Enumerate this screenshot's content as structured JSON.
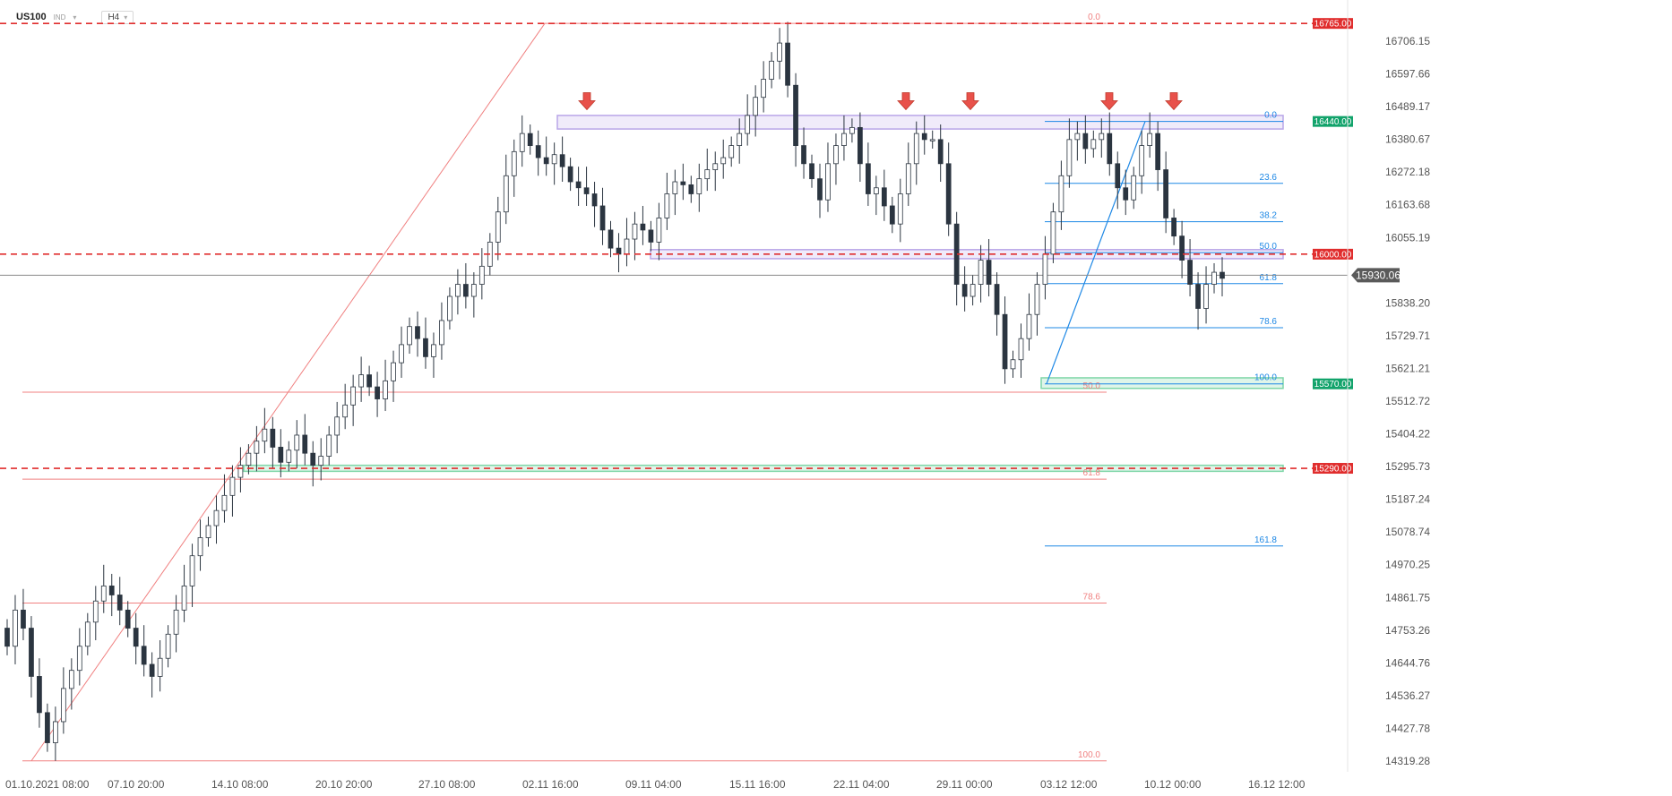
{
  "header": {
    "symbol": "US100",
    "exchange": "IND",
    "timeframe": "H4"
  },
  "colors": {
    "up": "#ffffff",
    "down": "#2b3540",
    "wick": "#2b3540",
    "resistance": "#e02d2d",
    "support_label": "#12a36b",
    "fib_red": "#f08080",
    "fib_blue": "#1e88e5",
    "zone": "#b9a6e8",
    "zone_green": "#7fd6a8",
    "current": "#555555",
    "arrow": "#e8514a"
  },
  "chart_data": {
    "type": "candlestick",
    "symbol": "US100",
    "timeframe": "H4",
    "ylim": [
      14270,
      16800
    ],
    "y_ticks": [
      "16706.15",
      "16597.66",
      "16489.17",
      "16380.67",
      "16272.18",
      "16163.68",
      "16055.19",
      "15838.20",
      "15729.71",
      "15621.21",
      "15512.72",
      "15404.22",
      "15295.73",
      "15187.24",
      "15078.74",
      "14970.25",
      "14861.75",
      "14753.26",
      "14644.76",
      "14536.27",
      "14427.78",
      "14319.28"
    ],
    "x_ticks": [
      "01.10.2021  08:00",
      "07.10  20:00",
      "14.10  08:00",
      "20.10  20:00",
      "27.10  08:00",
      "02.11  16:00",
      "09.11  04:00",
      "15.11  16:00",
      "22.11  04:00",
      "29.11  00:00",
      "03.12  12:00",
      "10.12  00:00",
      "16.12  12:00"
    ],
    "current_price": "15930.06",
    "levels": [
      {
        "price": 16765,
        "label": "16765.00",
        "kind": "resistance"
      },
      {
        "price": 16440,
        "label": "16440.00",
        "kind": "support"
      },
      {
        "price": 16000,
        "label": "16000.00",
        "kind": "resistance"
      },
      {
        "price": 15570,
        "label": "15570.00",
        "kind": "support"
      },
      {
        "price": 15290,
        "label": "15290.00",
        "kind": "resistance"
      }
    ],
    "fib_red": {
      "high": 16765,
      "low": 14320,
      "levels": [
        {
          "ratio": 0.0,
          "label": "0.0"
        },
        {
          "ratio": 0.5,
          "label": "50.0"
        },
        {
          "ratio": 0.618,
          "label": "61.8"
        },
        {
          "ratio": 0.786,
          "label": "78.6"
        },
        {
          "ratio": 1.0,
          "label": "100.0"
        }
      ]
    },
    "fib_blue": {
      "high": 16440,
      "low": 15570,
      "levels": [
        {
          "ratio": 0.0,
          "label": "0.0"
        },
        {
          "ratio": 0.236,
          "label": "23.6"
        },
        {
          "ratio": 0.382,
          "label": "38.2"
        },
        {
          "ratio": 0.5,
          "label": "50.0"
        },
        {
          "ratio": 0.618,
          "label": "61.8"
        },
        {
          "ratio": 0.786,
          "label": "78.6"
        },
        {
          "ratio": 1.0,
          "label": "100.0"
        },
        {
          "ratio": 1.618,
          "label": "161.8"
        }
      ]
    },
    "zones": [
      {
        "from": 16415,
        "to": 16460
      },
      {
        "from": 15985,
        "to": 16015
      },
      {
        "from": 15555,
        "to": 15590
      },
      {
        "from": 15280,
        "to": 15300
      }
    ],
    "arrows_at_price": 16470,
    "series": [
      {
        "name": "close",
        "values": [
          14700,
          14820,
          14760,
          14600,
          14480,
          14380,
          14450,
          14560,
          14620,
          14700,
          14780,
          14850,
          14900,
          14870,
          14820,
          14760,
          14700,
          14640,
          14600,
          14660,
          14740,
          14820,
          14900,
          15000,
          15060,
          15100,
          15150,
          15200,
          15260,
          15300,
          15340,
          15380,
          15420,
          15360,
          15310,
          15350,
          15400,
          15340,
          15300,
          15330,
          15400,
          15460,
          15500,
          15560,
          15600,
          15560,
          15520,
          15580,
          15640,
          15700,
          15760,
          15720,
          15660,
          15700,
          15780,
          15860,
          15900,
          15860,
          15900,
          15960,
          16040,
          16140,
          16260,
          16340,
          16400,
          16360,
          16320,
          16300,
          16330,
          16290,
          16240,
          16220,
          16200,
          16160,
          16080,
          16020,
          16000,
          16050,
          16100,
          16080,
          16040,
          16120,
          16200,
          16240,
          16230,
          16200,
          16250,
          16280,
          16300,
          16320,
          16360,
          16400,
          16460,
          16520,
          16580,
          16640,
          16700,
          16560,
          16360,
          16300,
          16250,
          16180,
          16300,
          16360,
          16400,
          16420,
          16300,
          16200,
          16220,
          16160,
          16100,
          16200,
          16300,
          16400,
          16380,
          16380,
          16300,
          16100,
          15900,
          15860,
          15900,
          15980,
          15900,
          15800,
          15620,
          15650,
          15720,
          15800,
          15900,
          16000,
          16140,
          16260,
          16380,
          16400,
          16350,
          16380,
          16400,
          16300,
          16220,
          16180,
          16260,
          16360,
          16400,
          16280,
          16120,
          16060,
          15980,
          15900,
          15820,
          15900,
          15940,
          15920
        ]
      }
    ]
  }
}
